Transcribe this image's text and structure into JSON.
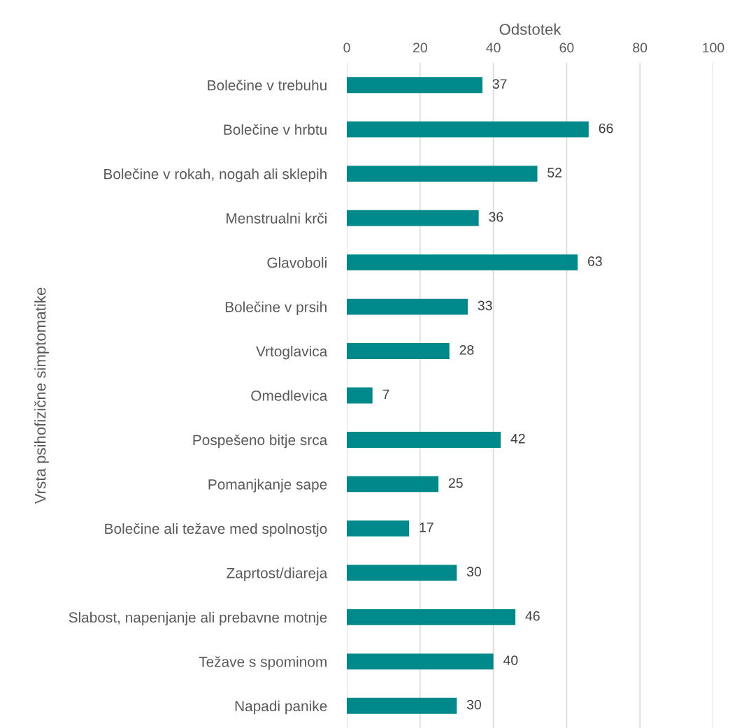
{
  "chart_data": {
    "type": "bar",
    "orientation": "horizontal",
    "xlabel": "Odstotek",
    "ylabel": "Vrsta psihofizične simptomatike",
    "categories": [
      "Bolečine v trebuhu",
      "Bolečine v hrbtu",
      "Bolečine v rokah, nogah ali sklepih",
      "Menstrualni krči",
      "Glavoboli",
      "Bolečine v prsih",
      "Vrtoglavica",
      "Omedlevica",
      "Pospešeno bitje srca",
      "Pomanjkanje sape",
      "Bolečine ali težave med spolnostjo",
      "Zaprtost/diareja",
      "Slabost, napenjanje ali prebavne motnje",
      "Težave s spominom",
      "Napadi panike"
    ],
    "values": [
      37,
      66,
      52,
      36,
      63,
      33,
      28,
      7,
      42,
      25,
      17,
      30,
      46,
      40,
      30
    ],
    "color": "#00898b",
    "xlim": [
      0,
      100
    ],
    "xticks": [
      0,
      20,
      40,
      60,
      80,
      100
    ],
    "grid": "x",
    "data_labels": true
  }
}
